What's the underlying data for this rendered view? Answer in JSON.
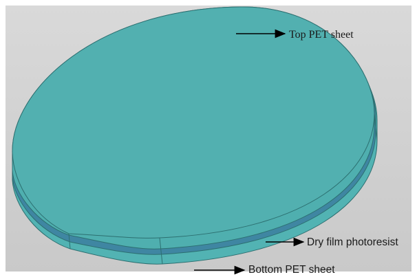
{
  "diagram": {
    "layers": [
      {
        "name": "Top PET sheet",
        "color": "#4fb0b0"
      },
      {
        "name": "Dry film photoresist",
        "color": "#3f86a2"
      },
      {
        "name": "Bottom PET sheet",
        "color": "#4fb0b0"
      }
    ],
    "background_color": "#cfcfcf",
    "labels": {
      "top": "Top PET sheet",
      "middle": "Dry film photoresist",
      "bottom": "Bottom PET sheet"
    }
  }
}
